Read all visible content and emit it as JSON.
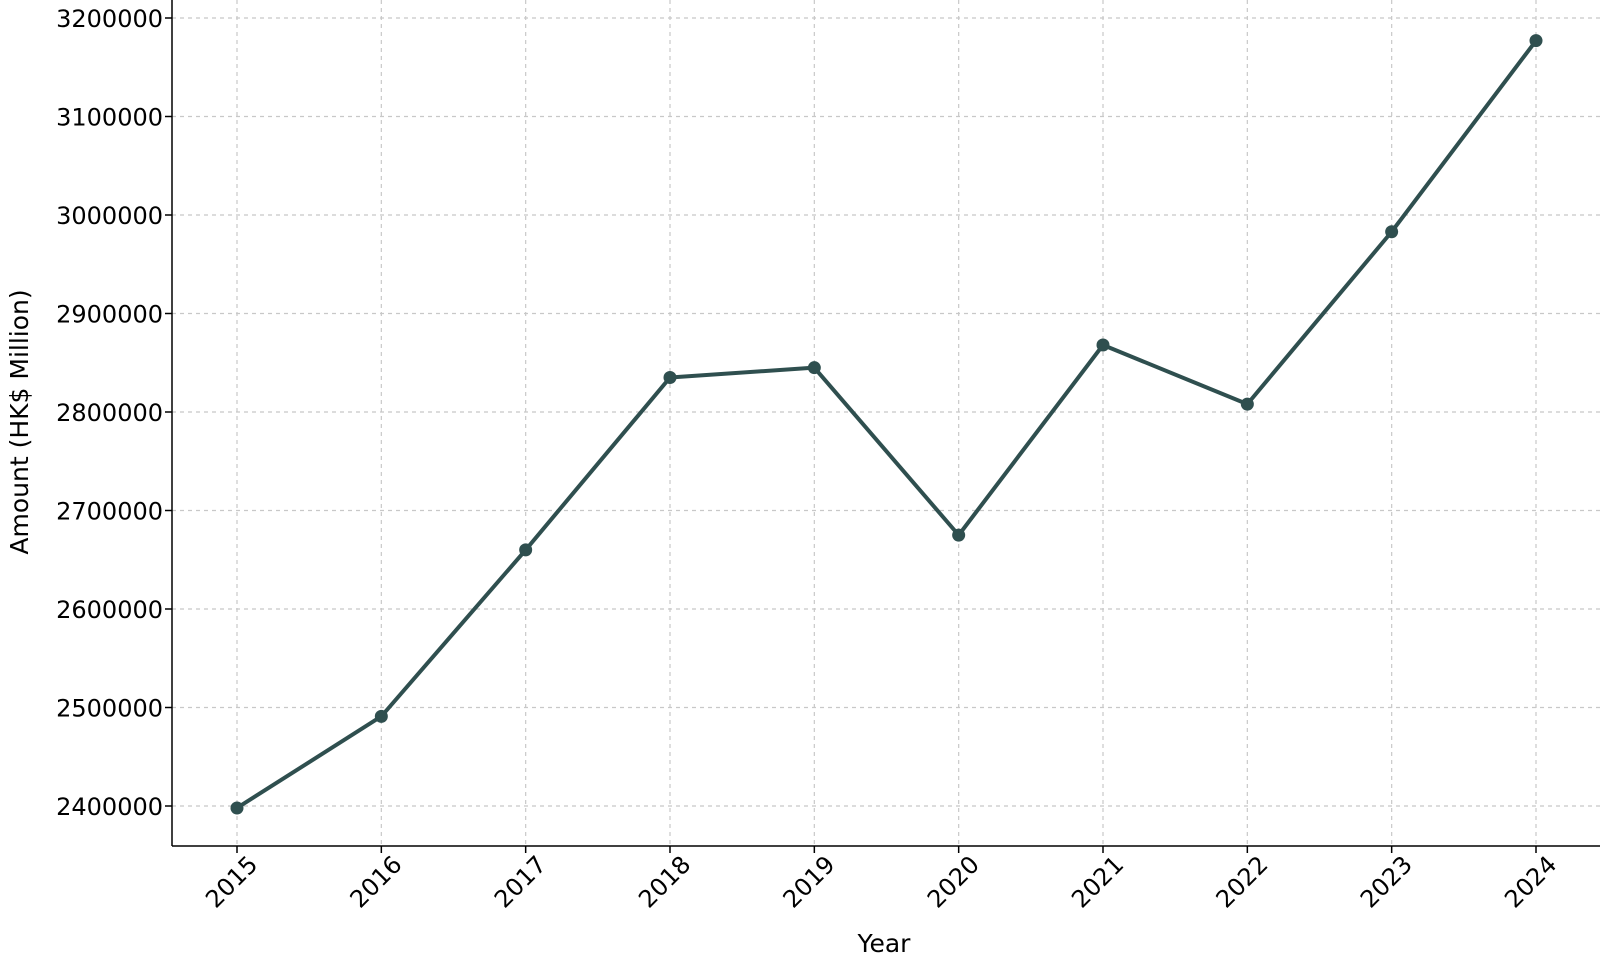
{
  "chart_data": {
    "type": "line",
    "title": "",
    "xlabel": "Year",
    "ylabel": "Amount (HK$ Million)",
    "categories": [
      "2015",
      "2016",
      "2017",
      "2018",
      "2019",
      "2020",
      "2021",
      "2022",
      "2023",
      "2024"
    ],
    "series": [
      {
        "values": [
          2398000,
          2491000,
          2660000,
          2835000,
          2845000,
          2675000,
          2868000,
          2808000,
          2983000,
          3177000
        ],
        "color": "#2f4f4f"
      }
    ],
    "yticks": [
      2400000,
      2500000,
      2600000,
      2700000,
      2800000,
      2900000,
      3000000,
      3100000,
      3200000
    ],
    "ylim": [
      2360000,
      3200000
    ],
    "grid": true,
    "x_tick_rotation": "45 degrees",
    "marker": "circle"
  }
}
